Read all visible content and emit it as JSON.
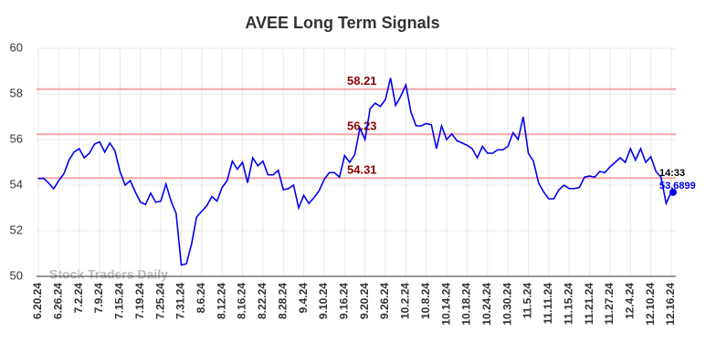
{
  "chart_data": {
    "type": "line",
    "title": "AVEE Long Term Signals",
    "categories": [
      "6.20.24",
      null,
      null,
      null,
      "6.26.24",
      null,
      null,
      null,
      "7.2.24",
      null,
      null,
      null,
      "7.9.24",
      null,
      null,
      null,
      "7.15.24",
      null,
      null,
      null,
      "7.19.24",
      null,
      null,
      null,
      "7.25.24",
      null,
      null,
      null,
      "7.31.24",
      null,
      null,
      null,
      "8.6.24",
      null,
      null,
      null,
      "8.12.24",
      null,
      null,
      null,
      "8.16.24",
      null,
      null,
      null,
      "8.22.24",
      null,
      null,
      null,
      "8.28.24",
      null,
      null,
      null,
      "9.4.24",
      null,
      null,
      null,
      "9.10.24",
      null,
      null,
      null,
      "9.16.24",
      null,
      null,
      null,
      "9.20.24",
      null,
      null,
      null,
      "9.26.24",
      null,
      null,
      null,
      "10.2.24",
      null,
      null,
      null,
      "10.8.24",
      null,
      null,
      null,
      "10.14.24",
      null,
      null,
      null,
      "10.18.24",
      null,
      null,
      null,
      "10.24.24",
      null,
      null,
      null,
      "10.30.24",
      null,
      null,
      null,
      "11.5.24",
      null,
      null,
      null,
      "11.11.24",
      null,
      null,
      null,
      "11.15.24",
      null,
      null,
      null,
      "11.21.24",
      null,
      null,
      null,
      "11.27.24",
      null,
      null,
      null,
      "12.4.24",
      null,
      null,
      null,
      "12.10.24",
      null,
      null,
      null,
      "12.16.24"
    ],
    "series": [
      {
        "name": "AVEE",
        "color": "#0000ee",
        "values": [
          54.28,
          54.3,
          54.1,
          53.84,
          54.2,
          54.5,
          55.1,
          55.45,
          55.6,
          55.2,
          55.4,
          55.8,
          55.9,
          55.45,
          55.85,
          55.5,
          54.6,
          54.0,
          54.2,
          53.7,
          53.25,
          53.15,
          53.65,
          53.25,
          53.3,
          54.05,
          53.3,
          52.75,
          50.5,
          50.55,
          51.4,
          52.6,
          52.85,
          53.1,
          53.5,
          53.3,
          53.9,
          54.2,
          55.05,
          54.7,
          55.0,
          54.1,
          55.2,
          54.85,
          55.05,
          54.45,
          54.45,
          54.65,
          53.8,
          53.85,
          54.0,
          53.0,
          53.55,
          53.2,
          53.45,
          53.75,
          54.25,
          54.55,
          54.55,
          54.35,
          55.3,
          55.0,
          55.35,
          56.5,
          56.0,
          57.35,
          57.6,
          57.45,
          57.75,
          58.7,
          57.5,
          57.9,
          58.4,
          57.2,
          56.6,
          56.6,
          56.7,
          56.65,
          55.6,
          56.6,
          56.0,
          56.25,
          55.95,
          55.85,
          55.75,
          55.6,
          55.2,
          55.7,
          55.4,
          55.4,
          55.55,
          55.55,
          55.7,
          56.3,
          56.0,
          57.0,
          55.4,
          55.05,
          54.1,
          53.7,
          53.4,
          53.4,
          53.8,
          54.0,
          53.85,
          53.85,
          53.9,
          54.35,
          54.4,
          54.35,
          54.6,
          54.55,
          54.8,
          55.0,
          55.2,
          55.0,
          55.6,
          55.1,
          55.6,
          55.0,
          55.25,
          54.6,
          54.35,
          53.2,
          53.6899
        ]
      }
    ],
    "ylim": [
      50,
      60
    ],
    "yticks": [
      50,
      52,
      54,
      56,
      58,
      60
    ],
    "grid": true,
    "hlines": [
      58.21,
      56.23,
      54.31
    ],
    "hline_color": "#f4a6a6",
    "hline_label_color": "#8b0000",
    "last_time": "14:33",
    "watermark": "Stock Traders Daily"
  }
}
